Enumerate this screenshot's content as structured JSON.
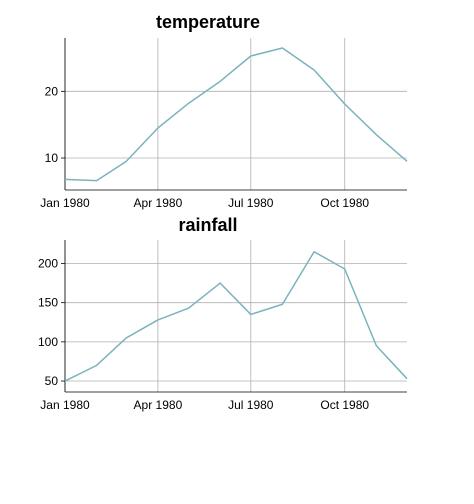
{
  "chart_data": [
    {
      "type": "line",
      "title": "temperature",
      "xlabel": "",
      "ylabel": "",
      "x": [
        "1980-01-01",
        "1980-02-01",
        "1980-03-01",
        "1980-04-01",
        "1980-05-01",
        "1980-06-01",
        "1980-07-01",
        "1980-08-01",
        "1980-09-01",
        "1980-10-01",
        "1980-11-01",
        "1980-12-01"
      ],
      "series": [
        {
          "values": [
            6.8,
            6.6,
            9.5,
            14.5,
            18.2,
            21.5,
            25.3,
            26.5,
            23.2,
            18.1,
            13.5,
            9.5
          ],
          "color": "#7ab3bd"
        }
      ],
      "xticks": [
        {
          "date": "1980-01-01",
          "label": "Jan 1980"
        },
        {
          "date": "1980-04-01",
          "label": "Apr 1980"
        },
        {
          "date": "1980-07-01",
          "label": "Jul 1980"
        },
        {
          "date": "1980-10-01",
          "label": "Oct 1980"
        }
      ],
      "yticks": [
        10,
        20
      ],
      "ylim": [
        5.2,
        28
      ],
      "grid": true
    },
    {
      "type": "line",
      "title": "rainfall",
      "xlabel": "",
      "ylabel": "",
      "x": [
        "1980-01-01",
        "1980-02-01",
        "1980-03-01",
        "1980-04-01",
        "1980-05-01",
        "1980-06-01",
        "1980-07-01",
        "1980-08-01",
        "1980-09-01",
        "1980-10-01",
        "1980-11-01",
        "1980-12-01"
      ],
      "series": [
        {
          "values": [
            50,
            70,
            105,
            128,
            143,
            175,
            135,
            148,
            215,
            193,
            95,
            53
          ],
          "color": "#7ab3bd"
        }
      ],
      "xticks": [
        {
          "date": "1980-01-01",
          "label": "Jan 1980"
        },
        {
          "date": "1980-04-01",
          "label": "Apr 1980"
        },
        {
          "date": "1980-07-01",
          "label": "Jul 1980"
        },
        {
          "date": "1980-10-01",
          "label": "Oct 1980"
        }
      ],
      "yticks": [
        50,
        100,
        150,
        200
      ],
      "ylim": [
        36,
        230
      ],
      "grid": true
    }
  ]
}
